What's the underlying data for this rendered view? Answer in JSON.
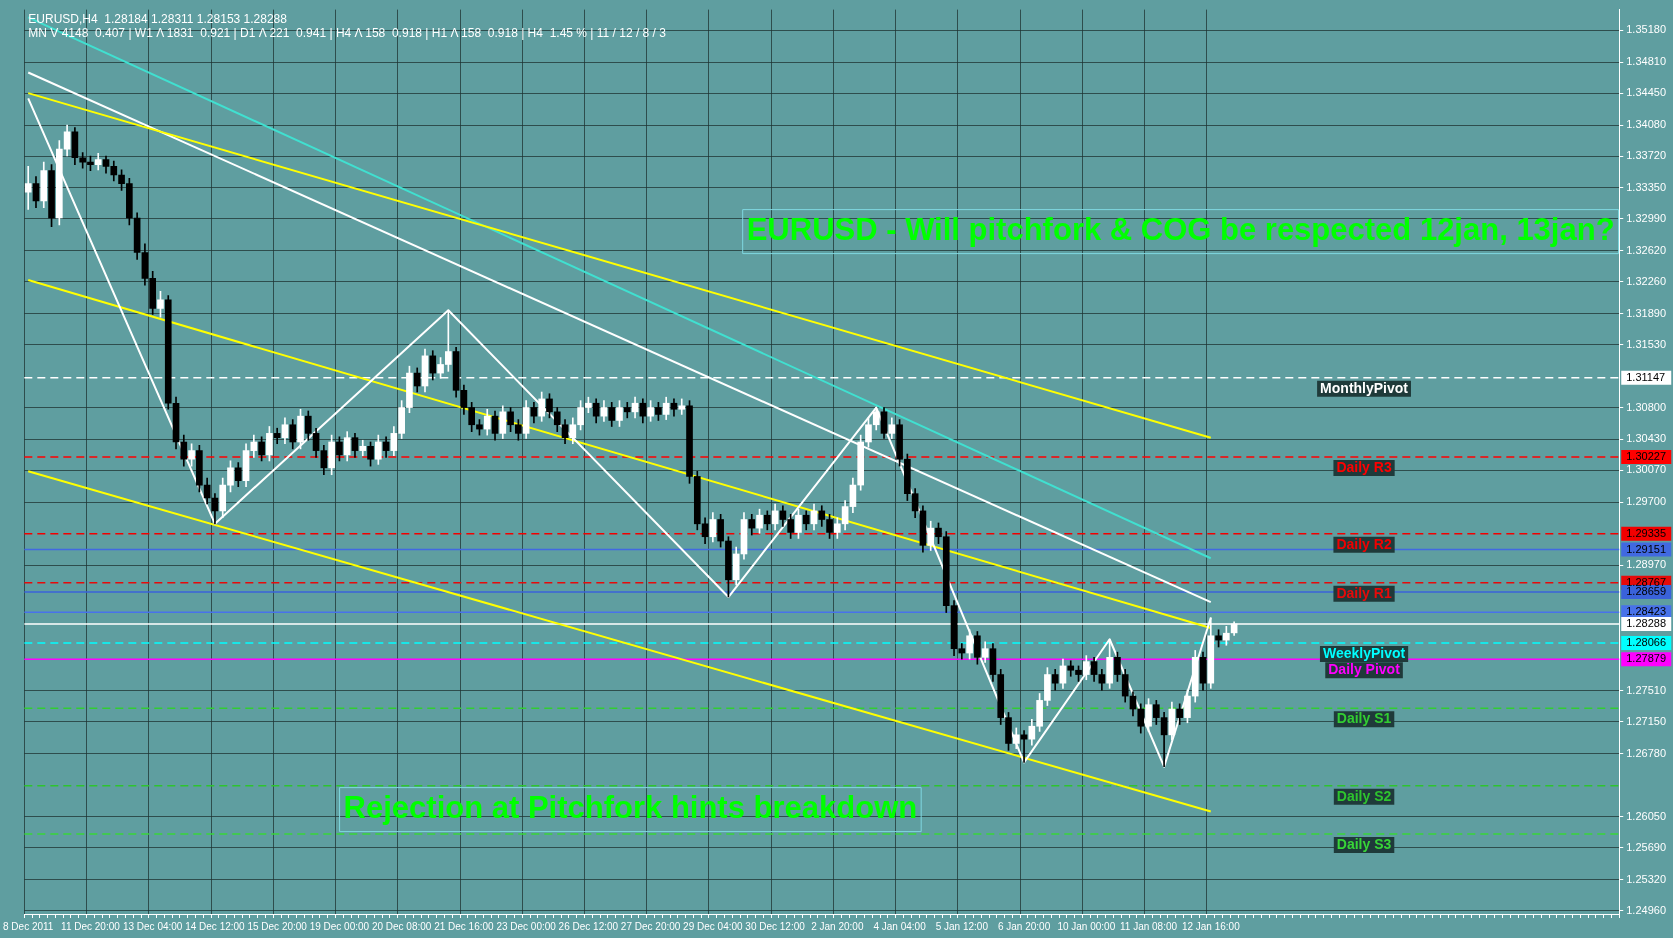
{
  "chart_data": {
    "type": "candlestick",
    "title": "EURUSD - Will pitchfork & COG be respected 12jan, 13jan?",
    "subtitle": "EURUSD,H4  1.28184 1.28311 1.28153 1.28288",
    "annotations": [
      "MN V 4148  0.407 | W1 Λ 1831  0.921 | D1 Λ 221  0.941 | H4 Λ 158  0.918 | H1 Λ 158  0.918 | H4  1.45 % | 11 / 12 / 8 / 3",
      "Rejection at Pitchfork hints breakdown"
    ],
    "categories": [
      "8 Dec 2011",
      null,
      null,
      null,
      null,
      null,
      null,
      null,
      "11 Dec 20:00",
      null,
      null,
      null,
      null,
      null,
      null,
      null,
      "13 Dec 04:00",
      null,
      null,
      null,
      null,
      null,
      null,
      null,
      "14 Dec 12:00",
      null,
      null,
      null,
      null,
      null,
      null,
      null,
      "15 Dec 20:00",
      null,
      null,
      null,
      null,
      null,
      null,
      null,
      "19 Dec 00:00",
      null,
      null,
      null,
      null,
      null,
      null,
      null,
      "20 Dec 08:00",
      null,
      null,
      null,
      null,
      null,
      null,
      null,
      "21 Dec 16:00",
      null,
      null,
      null,
      null,
      null,
      null,
      null,
      "23 Dec 00:00",
      null,
      null,
      null,
      null,
      null,
      null,
      null,
      "26 Dec 12:00",
      null,
      null,
      null,
      null,
      null,
      null,
      null,
      "27 Dec 20:00",
      null,
      null,
      null,
      null,
      null,
      null,
      null,
      "29 Dec 04:00",
      null,
      null,
      null,
      null,
      null,
      null,
      null,
      "30 Dec 12:00",
      null,
      null,
      null,
      null,
      null,
      null,
      null,
      "2 Jan 20:00",
      null,
      null,
      null,
      null,
      null,
      null,
      null,
      "4 Jan 04:00",
      null,
      null,
      null,
      null,
      null,
      null,
      null,
      "5 Jan 12:00",
      null,
      null,
      null,
      null,
      null,
      null,
      null,
      "6 Jan 20:00",
      null,
      null,
      null,
      null,
      null,
      null,
      null,
      "10 Jan 00:00",
      null,
      null,
      null,
      null,
      null,
      null,
      null,
      "11 Jan 08:00",
      null,
      null,
      null,
      null,
      null,
      null,
      null,
      "12 Jan 16:00",
      null,
      null,
      null,
      null,
      null,
      null,
      null,
      null,
      null,
      null,
      null,
      null,
      null,
      null,
      null,
      null,
      null,
      null,
      null,
      null,
      null,
      null,
      null,
      null,
      null,
      null,
      null,
      null,
      null,
      null,
      null,
      null,
      null,
      null,
      null,
      null,
      null,
      null,
      null,
      null,
      null,
      null,
      null,
      null,
      null,
      null,
      null,
      null,
      null,
      null,
      null,
      null
    ],
    "ohlc": [
      [
        1.333,
        1.336,
        1.331,
        1.334
      ],
      [
        1.334,
        1.3348,
        1.3312,
        1.332
      ],
      [
        1.332,
        1.3365,
        1.3312,
        1.3355
      ],
      [
        1.3355,
        1.3362,
        1.329,
        1.33
      ],
      [
        1.33,
        1.339,
        1.3292,
        1.338
      ],
      [
        1.338,
        1.3408,
        1.3372,
        1.34
      ],
      [
        1.34,
        1.3405,
        1.3362,
        1.337
      ],
      [
        1.337,
        1.3376,
        1.3358,
        1.3365
      ],
      [
        1.3365,
        1.3372,
        1.3355,
        1.3362
      ],
      [
        1.3362,
        1.3375,
        1.3356,
        1.3368
      ],
      [
        1.3368,
        1.3372,
        1.3352,
        1.336
      ],
      [
        1.336,
        1.3366,
        1.3343,
        1.335
      ],
      [
        1.335,
        1.3356,
        1.3332,
        1.334
      ],
      [
        1.334,
        1.3346,
        1.3292,
        1.33
      ],
      [
        1.33,
        1.3306,
        1.3252,
        1.326
      ],
      [
        1.326,
        1.327,
        1.3222,
        1.323
      ],
      [
        1.323,
        1.3238,
        1.3188,
        1.3195
      ],
      [
        1.3195,
        1.3215,
        1.3185,
        1.3205
      ],
      [
        1.3205,
        1.321,
        1.3078,
        1.3085
      ],
      [
        1.3085,
        1.3092,
        1.3032,
        1.304
      ],
      [
        1.304,
        1.3048,
        1.3012,
        1.302
      ],
      [
        1.302,
        1.3038,
        1.3012,
        1.303
      ],
      [
        1.303,
        1.3036,
        1.2982,
        1.299
      ],
      [
        1.299,
        1.2998,
        1.2968,
        1.2975
      ],
      [
        1.2975,
        1.298,
        1.2945,
        1.296
      ],
      [
        1.296,
        1.2998,
        1.2952,
        1.299
      ],
      [
        1.299,
        1.3018,
        1.2982,
        1.301
      ],
      [
        1.301,
        1.3016,
        1.2988,
        1.2995
      ],
      [
        1.2995,
        1.3038,
        1.2988,
        1.303
      ],
      [
        1.303,
        1.3048,
        1.3022,
        1.304
      ],
      [
        1.304,
        1.3046,
        1.3018,
        1.3025
      ],
      [
        1.3025,
        1.3058,
        1.3018,
        1.305
      ],
      [
        1.305,
        1.3056,
        1.3038,
        1.3045
      ],
      [
        1.3045,
        1.3068,
        1.3038,
        1.306
      ],
      [
        1.306,
        1.3066,
        1.3032,
        1.304
      ],
      [
        1.304,
        1.3078,
        1.3032,
        1.307
      ],
      [
        1.307,
        1.3076,
        1.3042,
        1.305
      ],
      [
        1.305,
        1.3056,
        1.3022,
        1.303
      ],
      [
        1.303,
        1.3036,
        1.3002,
        1.301
      ],
      [
        1.301,
        1.3048,
        1.3002,
        1.304
      ],
      [
        1.304,
        1.3046,
        1.3018,
        1.3025
      ],
      [
        1.3025,
        1.3052,
        1.3018,
        1.3045
      ],
      [
        1.3045,
        1.305,
        1.3022,
        1.303
      ],
      [
        1.303,
        1.3042,
        1.3024,
        1.3035
      ],
      [
        1.3035,
        1.304,
        1.3012,
        1.302
      ],
      [
        1.302,
        1.3048,
        1.3014,
        1.304
      ],
      [
        1.304,
        1.3046,
        1.3022,
        1.303
      ],
      [
        1.303,
        1.3058,
        1.3024,
        1.305
      ],
      [
        1.305,
        1.3088,
        1.3044,
        1.308
      ],
      [
        1.308,
        1.3128,
        1.3074,
        1.312
      ],
      [
        1.312,
        1.3126,
        1.3098,
        1.3105
      ],
      [
        1.3105,
        1.3148,
        1.3098,
        1.314
      ],
      [
        1.314,
        1.3146,
        1.3112,
        1.312
      ],
      [
        1.312,
        1.3138,
        1.3114,
        1.313
      ],
      [
        1.313,
        1.3193,
        1.3122,
        1.3145
      ],
      [
        1.3145,
        1.315,
        1.3092,
        1.31
      ],
      [
        1.31,
        1.3106,
        1.3072,
        1.308
      ],
      [
        1.308,
        1.3086,
        1.3052,
        1.306
      ],
      [
        1.306,
        1.3066,
        1.3048,
        1.3055
      ],
      [
        1.3055,
        1.3078,
        1.3048,
        1.307
      ],
      [
        1.307,
        1.3076,
        1.3042,
        1.305
      ],
      [
        1.305,
        1.3082,
        1.3044,
        1.3075
      ],
      [
        1.3075,
        1.308,
        1.3052,
        1.306
      ],
      [
        1.306,
        1.3066,
        1.3042,
        1.305
      ],
      [
        1.305,
        1.3088,
        1.3044,
        1.308
      ],
      [
        1.308,
        1.3086,
        1.3062,
        1.307
      ],
      [
        1.307,
        1.3098,
        1.3064,
        1.309
      ],
      [
        1.309,
        1.3096,
        1.3068,
        1.3075
      ],
      [
        1.3075,
        1.308,
        1.3052,
        1.306
      ],
      [
        1.306,
        1.3066,
        1.3038,
        1.3045
      ],
      [
        1.3045,
        1.3068,
        1.3038,
        1.306
      ],
      [
        1.306,
        1.3088,
        1.3054,
        1.308
      ],
      [
        1.308,
        1.3092,
        1.3074,
        1.3085
      ],
      [
        1.3085,
        1.309,
        1.3062,
        1.307
      ],
      [
        1.307,
        1.3088,
        1.3064,
        1.308
      ],
      [
        1.308,
        1.3086,
        1.3058,
        1.3065
      ],
      [
        1.3065,
        1.3088,
        1.3058,
        1.308
      ],
      [
        1.308,
        1.3086,
        1.3068,
        1.3075
      ],
      [
        1.3075,
        1.3092,
        1.3068,
        1.3085
      ],
      [
        1.3085,
        1.309,
        1.3062,
        1.307
      ],
      [
        1.307,
        1.3088,
        1.3064,
        1.308
      ],
      [
        1.308,
        1.3086,
        1.3065,
        1.3072
      ],
      [
        1.3072,
        1.3092,
        1.3066,
        1.3085
      ],
      [
        1.3085,
        1.309,
        1.307,
        1.3078
      ],
      [
        1.3078,
        1.309,
        1.3072,
        1.3082
      ],
      [
        1.3082,
        1.3088,
        1.2992,
        1.3
      ],
      [
        1.3,
        1.3006,
        1.2938,
        1.2945
      ],
      [
        1.2945,
        1.2952,
        1.2922,
        1.293
      ],
      [
        1.293,
        1.2958,
        1.2924,
        1.295
      ],
      [
        1.295,
        1.2956,
        1.2918,
        1.2925
      ],
      [
        1.2925,
        1.293,
        1.286,
        1.288
      ],
      [
        1.288,
        1.2918,
        1.2874,
        1.291
      ],
      [
        1.291,
        1.2958,
        1.2904,
        1.295
      ],
      [
        1.295,
        1.2956,
        1.2932,
        1.294
      ],
      [
        1.294,
        1.2962,
        1.2934,
        1.2955
      ],
      [
        1.2955,
        1.296,
        1.2938,
        1.2945
      ],
      [
        1.2945,
        1.2968,
        1.2938,
        1.296
      ],
      [
        1.296,
        1.2966,
        1.2942,
        1.295
      ],
      [
        1.295,
        1.2956,
        1.2928,
        1.2935
      ],
      [
        1.2935,
        1.2962,
        1.2928,
        1.2955
      ],
      [
        1.2955,
        1.296,
        1.2938,
        1.2945
      ],
      [
        1.2945,
        1.2968,
        1.2938,
        1.296
      ],
      [
        1.296,
        1.2966,
        1.2942,
        1.295
      ],
      [
        1.295,
        1.2956,
        1.2928,
        1.2935
      ],
      [
        1.2935,
        1.2952,
        1.2928,
        1.2945
      ],
      [
        1.2945,
        1.2972,
        1.2938,
        1.2965
      ],
      [
        1.2965,
        1.2998,
        1.2958,
        1.299
      ],
      [
        1.299,
        1.3048,
        1.2984,
        1.304
      ],
      [
        1.304,
        1.3068,
        1.3034,
        1.306
      ],
      [
        1.306,
        1.308,
        1.3054,
        1.3075
      ],
      [
        1.3075,
        1.308,
        1.3044,
        1.305
      ],
      [
        1.305,
        1.3068,
        1.3044,
        1.306
      ],
      [
        1.306,
        1.3066,
        1.3012,
        1.302
      ],
      [
        1.302,
        1.3026,
        1.2972,
        1.298
      ],
      [
        1.298,
        1.2986,
        1.2952,
        1.296
      ],
      [
        1.296,
        1.2966,
        1.2912,
        1.292
      ],
      [
        1.292,
        1.2948,
        1.2914,
        1.294
      ],
      [
        1.294,
        1.2946,
        1.2922,
        1.293
      ],
      [
        1.293,
        1.2936,
        1.2842,
        1.285
      ],
      [
        1.285,
        1.2856,
        1.2792,
        1.28
      ],
      [
        1.28,
        1.2806,
        1.2788,
        1.2795
      ],
      [
        1.2795,
        1.2822,
        1.2788,
        1.2815
      ],
      [
        1.2815,
        1.282,
        1.2782,
        1.279
      ],
      [
        1.279,
        1.2808,
        1.2784,
        1.28
      ],
      [
        1.28,
        1.2806,
        1.2762,
        1.277
      ],
      [
        1.277,
        1.2776,
        1.2712,
        1.272
      ],
      [
        1.272,
        1.2726,
        1.2682,
        1.269
      ],
      [
        1.269,
        1.2708,
        1.2684,
        1.27
      ],
      [
        1.27,
        1.2705,
        1.2668,
        1.2695
      ],
      [
        1.2695,
        1.2718,
        1.2688,
        1.271
      ],
      [
        1.271,
        1.2748,
        1.2704,
        1.274
      ],
      [
        1.274,
        1.2778,
        1.2734,
        1.277
      ],
      [
        1.277,
        1.2776,
        1.2752,
        1.276
      ],
      [
        1.276,
        1.2788,
        1.2754,
        1.278
      ],
      [
        1.278,
        1.2786,
        1.2768,
        1.2775
      ],
      [
        1.2775,
        1.278,
        1.2762,
        1.277
      ],
      [
        1.277,
        1.2792,
        1.2764,
        1.2785
      ],
      [
        1.2785,
        1.279,
        1.2762,
        1.277
      ],
      [
        1.277,
        1.2776,
        1.2752,
        1.276
      ],
      [
        1.276,
        1.2811,
        1.2754,
        1.279
      ],
      [
        1.279,
        1.2796,
        1.2762,
        1.277
      ],
      [
        1.277,
        1.2776,
        1.2738,
        1.2745
      ],
      [
        1.2745,
        1.275,
        1.2722,
        1.273
      ],
      [
        1.273,
        1.2736,
        1.2702,
        1.271
      ],
      [
        1.271,
        1.2742,
        1.2704,
        1.2735
      ],
      [
        1.2735,
        1.274,
        1.2712,
        1.272
      ],
      [
        1.272,
        1.2726,
        1.2663,
        1.27
      ],
      [
        1.27,
        1.2738,
        1.2694,
        1.273
      ],
      [
        1.273,
        1.2736,
        1.2712,
        1.272
      ],
      [
        1.272,
        1.2752,
        1.2714,
        1.2745
      ],
      [
        1.2745,
        1.2798,
        1.2738,
        1.279
      ],
      [
        1.279,
        1.2796,
        1.2752,
        1.276
      ],
      [
        1.276,
        1.2836,
        1.2754,
        1.2815
      ],
      [
        1.2815,
        1.2822,
        1.2802,
        1.281
      ],
      [
        1.281,
        1.2826,
        1.2804,
        1.2818
      ],
      [
        1.28184,
        1.28311,
        1.28153,
        1.28288
      ],
      null,
      null,
      null,
      null,
      null,
      null,
      null,
      null,
      null,
      null,
      null,
      null,
      null,
      null,
      null,
      null,
      null,
      null,
      null,
      null,
      null,
      null,
      null,
      null,
      null,
      null,
      null,
      null,
      null,
      null,
      null,
      null,
      null,
      null,
      null,
      null,
      null,
      null,
      null,
      null,
      null,
      null,
      null,
      null,
      null,
      null,
      null,
      null,
      null
    ],
    "series": [
      {
        "type": "line",
        "color": "#ffffff",
        "values": [
          1.3439,
          null,
          null,
          null,
          null,
          null,
          null,
          null,
          null,
          null,
          null,
          null,
          null,
          null,
          null,
          null,
          null,
          null,
          null,
          null,
          null,
          null,
          null,
          null,
          1.2945,
          null,
          null,
          null,
          null,
          null,
          null,
          null,
          null,
          null,
          null,
          null,
          null,
          null,
          null,
          null,
          null,
          null,
          null,
          null,
          null,
          null,
          null,
          null,
          null,
          null,
          null,
          null,
          null,
          null,
          1.3193,
          null,
          null,
          null,
          null,
          null,
          null,
          null,
          null,
          null,
          null,
          null,
          null,
          null,
          null,
          null,
          null,
          null,
          null,
          null,
          null,
          null,
          null,
          null,
          null,
          null,
          null,
          null,
          null,
          null,
          null,
          null,
          null,
          null,
          null,
          null,
          1.286,
          null,
          null,
          null,
          null,
          null,
          null,
          null,
          null,
          null,
          null,
          null,
          null,
          null,
          null,
          null,
          null,
          null,
          null,
          1.308,
          null,
          null,
          null,
          null,
          null,
          null,
          null,
          null,
          null,
          null,
          null,
          null,
          null,
          null,
          null,
          null,
          null,
          null,
          1.2668,
          null,
          null,
          null,
          null,
          null,
          null,
          null,
          null,
          null,
          null,
          1.2811,
          null,
          null,
          null,
          null,
          null,
          null,
          1.2663,
          null,
          null,
          null,
          null,
          null,
          1.2836,
          null,
          null,
          null,
          null,
          null,
          null,
          null,
          null,
          null,
          null,
          null,
          null,
          null,
          null,
          null,
          null,
          null,
          null,
          null,
          null,
          null,
          null,
          null,
          null,
          null,
          null,
          null,
          null,
          null,
          null,
          null,
          null,
          null,
          null,
          null,
          null,
          null,
          null,
          null,
          null,
          null,
          null,
          null,
          null,
          null,
          null,
          null,
          null,
          null,
          null,
          null,
          null
        ]
      },
      {
        "type": "line",
        "color": "#ffff00",
        "x": [
          "8 Dec 2011",
          "12 Jan 16:00"
        ],
        "values": [
          1.3228,
          1.2824
        ]
      },
      {
        "type": "line",
        "color": "#ffff00",
        "x": [
          "8 Dec 2011",
          "12 Jan 16:00"
        ],
        "values": [
          1.3445,
          1.3045
        ]
      },
      {
        "type": "line",
        "color": "#ffff00",
        "x": [
          "8 Dec 2011",
          "12 Jan 16:00"
        ],
        "values": [
          1.3006,
          1.2611
        ]
      },
      {
        "type": "line",
        "color": "#ffffff",
        "x": [
          "8 Dec 2011",
          "12 Jan 16:00"
        ],
        "values": [
          1.3469,
          1.2854
        ]
      },
      {
        "type": "line",
        "color": "#40e0d0",
        "x": [
          "8 Dec 2011",
          "12 Jan 16:00"
        ],
        "values": [
          1.3533,
          1.2905
        ]
      }
    ],
    "ref_lines": [
      {
        "axis": "y",
        "value": 1.31147,
        "label": "MonthlyPivot",
        "color": "#ffffff",
        "line_style": "dashed"
      },
      {
        "axis": "y",
        "value": 1.30227,
        "label": "Daily R3",
        "color": "#ff0000",
        "line_style": "dashed"
      },
      {
        "axis": "y",
        "value": 1.29335,
        "label": "Daily R2",
        "color": "#f20000",
        "line_style": "dashed"
      },
      {
        "axis": "y",
        "value": 1.29151,
        "label": null,
        "color": "#4169e1",
        "line_style": "solid"
      },
      {
        "axis": "y",
        "value": 1.28767,
        "label": "Daily R1",
        "color": "#e60a0a",
        "line_style": "dashed"
      },
      {
        "axis": "y",
        "value": 1.28659,
        "label": null,
        "color": "#3a62da",
        "line_style": "solid"
      },
      {
        "axis": "y",
        "value": 1.28423,
        "label": null,
        "color": "#4872ea",
        "line_style": "solid"
      },
      {
        "axis": "y",
        "value": 1.28288,
        "label": null,
        "color": "#ffffff",
        "line_style": "solid"
      },
      {
        "axis": "y",
        "value": 1.28066,
        "label": "WeeklyPivot",
        "color": "#00ffff",
        "line_style": "dashed"
      },
      {
        "axis": "y",
        "value": 1.27879,
        "label": "Daily Pivot",
        "color": "#ff00ff",
        "line_style": "solid"
      },
      {
        "axis": "y",
        "value": 1.2731,
        "label": "Daily S1",
        "color": "#32cd32",
        "line_style": "dashed"
      },
      {
        "axis": "y",
        "value": 1.2641,
        "label": "Daily S2",
        "color": "#2ec42e",
        "line_style": "dashed"
      },
      {
        "axis": "y",
        "value": 1.2585,
        "label": "Daily S3",
        "color": "#38d638",
        "line_style": "dashed"
      }
    ],
    "ylim": [
      1.2492,
      1.3542
    ],
    "yticks": [
      {
        "value": 1.3518,
        "label": "1.35180"
      },
      {
        "value": 1.3481,
        "label": "1.34810"
      },
      {
        "value": 1.3445,
        "label": "1.34450"
      },
      {
        "value": 1.3408,
        "label": "1.34080"
      },
      {
        "value": 1.3372,
        "label": "1.33720"
      },
      {
        "value": 1.3335,
        "label": "1.33350"
      },
      {
        "value": 1.3299,
        "label": "1.32990"
      },
      {
        "value": 1.3262,
        "label": "1.32620"
      },
      {
        "value": 1.3226,
        "label": "1.32260"
      },
      {
        "value": 1.3189,
        "label": "1.31890"
      },
      {
        "value": 1.3153,
        "label": "1.31530"
      },
      {
        "value": 1.31147,
        "label": "1.31147"
      },
      {
        "value": 1.308,
        "label": "1.30800"
      },
      {
        "value": 1.3043,
        "label": "1.30430"
      },
      {
        "value": 1.30227,
        "label": "1.30227"
      },
      {
        "value": 1.3007,
        "label": "1.30070"
      },
      {
        "value": 1.297,
        "label": "1.29700"
      },
      {
        "value": 1.29335,
        "label": "1.29335"
      },
      {
        "value": 1.29151,
        "label": "1.29151"
      },
      {
        "value": 1.2897,
        "label": "1.28970"
      },
      {
        "value": 1.28767,
        "label": "1.28767"
      },
      {
        "value": 1.28659,
        "label": "1.28659"
      },
      {
        "value": 1.28423,
        "label": "1.28423"
      },
      {
        "value": 1.28288,
        "label": "1.28288"
      },
      {
        "value": 1.28066,
        "label": "1.28066"
      },
      {
        "value": 1.27879,
        "label": "1.27879"
      },
      {
        "value": 1.2751,
        "label": "1.27510"
      },
      {
        "value": 1.2715,
        "label": "1.27150"
      },
      {
        "value": 1.2678,
        "label": "1.26780"
      },
      {
        "value": 1.2605,
        "label": "1.26050"
      },
      {
        "value": 1.2569,
        "label": "1.25690"
      },
      {
        "value": 1.2532,
        "label": "1.25320"
      },
      {
        "value": 1.2496,
        "label": "1.24960"
      }
    ],
    "grid": true,
    "legend": false,
    "marker": "none"
  }
}
